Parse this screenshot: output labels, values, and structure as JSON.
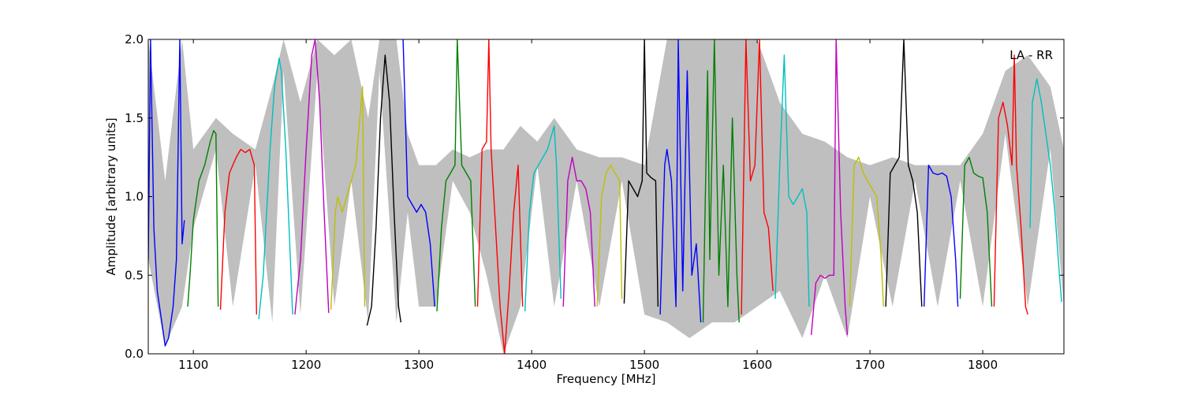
{
  "chart_data": {
    "type": "line",
    "title": "",
    "annotation": "LA - RR",
    "xlabel": "Frequency [MHz]",
    "ylabel": "Amplitude [arbitrary units]",
    "xlim": [
      1060,
      1872
    ],
    "ylim": [
      0.0,
      2.0
    ],
    "xticks": [
      1100,
      1200,
      1300,
      1400,
      1500,
      1600,
      1700,
      1800
    ],
    "yticks": [
      0.0,
      0.5,
      1.0,
      1.5,
      2.0
    ],
    "xtick_labels": [
      "1100",
      "1200",
      "1300",
      "1400",
      "1500",
      "1600",
      "1700",
      "1800"
    ],
    "ytick_labels": [
      "0.0",
      "0.5",
      "1.0",
      "1.5",
      "2.0"
    ],
    "grid": false,
    "background_envelope": {
      "color": "#bfbfbf",
      "x": [
        1060,
        1075,
        1090,
        1100,
        1120,
        1135,
        1155,
        1170,
        1180,
        1195,
        1210,
        1225,
        1240,
        1255,
        1265,
        1280,
        1290,
        1300,
        1315,
        1330,
        1345,
        1360,
        1375,
        1390,
        1405,
        1420,
        1440,
        1460,
        1480,
        1500,
        1520,
        1540,
        1560,
        1580,
        1600,
        1620,
        1640,
        1660,
        1680,
        1700,
        1720,
        1740,
        1760,
        1780,
        1800,
        1820,
        1840,
        1860,
        1872
      ],
      "upper": [
        2.0,
        1.1,
        2.0,
        1.3,
        1.5,
        1.4,
        1.3,
        1.7,
        2.0,
        1.6,
        2.0,
        1.9,
        2.0,
        1.5,
        2.0,
        2.0,
        1.4,
        1.2,
        1.2,
        1.3,
        1.25,
        1.3,
        1.3,
        1.45,
        1.35,
        1.5,
        1.3,
        1.25,
        1.25,
        1.2,
        2.0,
        2.0,
        2.0,
        2.0,
        2.0,
        1.6,
        1.4,
        1.35,
        1.25,
        1.2,
        1.25,
        1.2,
        1.2,
        1.2,
        1.4,
        1.8,
        1.9,
        1.7,
        1.3
      ],
      "lower": [
        0.6,
        0.05,
        0.3,
        0.8,
        1.3,
        0.3,
        1.2,
        0.2,
        1.8,
        0.25,
        1.8,
        0.3,
        1.1,
        0.2,
        1.8,
        0.2,
        0.9,
        0.3,
        0.3,
        1.1,
        0.9,
        0.5,
        0.0,
        0.3,
        1.2,
        0.3,
        1.1,
        0.3,
        1.1,
        0.25,
        0.2,
        0.1,
        0.2,
        0.2,
        0.3,
        0.4,
        0.1,
        0.5,
        0.1,
        1.0,
        0.3,
        1.1,
        0.3,
        1.1,
        0.3,
        1.4,
        0.3,
        1.3,
        0.3
      ]
    },
    "series": [
      {
        "color": "#0000ff",
        "x": [
          1060,
          1062,
          1065,
          1068,
          1072,
          1075,
          1078,
          1082,
          1085,
          1088,
          1090,
          1092
        ],
        "y": [
          0.6,
          2.0,
          0.8,
          0.4,
          0.2,
          0.05,
          0.1,
          0.3,
          0.6,
          2.0,
          0.7,
          0.85
        ]
      },
      {
        "color": "#008000",
        "x": [
          1095,
          1097,
          1100,
          1105,
          1110,
          1115,
          1118,
          1120,
          1122
        ],
        "y": [
          0.3,
          0.5,
          0.85,
          1.1,
          1.2,
          1.35,
          1.42,
          1.4,
          0.3
        ]
      },
      {
        "color": "#ff0000",
        "x": [
          1124,
          1128,
          1132,
          1138,
          1142,
          1146,
          1150,
          1154,
          1156
        ],
        "y": [
          0.28,
          0.9,
          1.15,
          1.25,
          1.3,
          1.28,
          1.3,
          1.2,
          0.25
        ]
      },
      {
        "color": "#00bfbf",
        "x": [
          1158,
          1162,
          1168,
          1172,
          1176,
          1178,
          1182,
          1186,
          1188
        ],
        "y": [
          0.22,
          0.5,
          1.3,
          1.7,
          1.88,
          1.8,
          1.3,
          0.6,
          0.25
        ]
      },
      {
        "color": "#bf00bf",
        "x": [
          1190,
          1195,
          1200,
          1205,
          1208,
          1212,
          1216,
          1220
        ],
        "y": [
          0.25,
          0.6,
          1.3,
          1.9,
          2.0,
          1.6,
          0.9,
          0.26
        ]
      },
      {
        "color": "#bfbf00",
        "x": [
          1222,
          1226,
          1228,
          1232,
          1238,
          1244,
          1250,
          1252
        ],
        "y": [
          0.28,
          0.9,
          1.0,
          0.9,
          1.05,
          1.2,
          1.7,
          0.3
        ]
      },
      {
        "color": "#000000",
        "x": [
          1254,
          1258,
          1262,
          1266,
          1270,
          1274,
          1278,
          1282,
          1284
        ],
        "y": [
          0.18,
          0.3,
          0.8,
          1.5,
          1.9,
          1.6,
          0.9,
          0.3,
          0.2
        ]
      },
      {
        "color": "#0000ff",
        "x": [
          1286,
          1288,
          1290,
          1294,
          1298,
          1302,
          1306,
          1310,
          1314
        ],
        "y": [
          2.0,
          1.5,
          1.0,
          0.95,
          0.9,
          0.95,
          0.9,
          0.7,
          0.3
        ]
      },
      {
        "color": "#008000",
        "x": [
          1316,
          1320,
          1324,
          1328,
          1332,
          1334,
          1338,
          1342,
          1346,
          1350
        ],
        "y": [
          0.27,
          0.8,
          1.1,
          1.15,
          1.2,
          2.0,
          1.2,
          1.15,
          1.1,
          0.3
        ]
      },
      {
        "color": "#ff0000",
        "x": [
          1352,
          1356,
          1360,
          1362,
          1364,
          1368,
          1372,
          1376,
          1380,
          1384,
          1388,
          1392
        ],
        "y": [
          0.3,
          1.3,
          1.35,
          2.0,
          1.3,
          0.8,
          0.3,
          0.0,
          0.4,
          0.9,
          1.2,
          0.3
        ]
      },
      {
        "color": "#00bfbf",
        "x": [
          1394,
          1398,
          1402,
          1406,
          1410,
          1414,
          1418,
          1420,
          1422,
          1426
        ],
        "y": [
          0.27,
          0.9,
          1.15,
          1.2,
          1.25,
          1.3,
          1.4,
          1.45,
          1.2,
          0.35
        ]
      },
      {
        "color": "#bf00bf",
        "x": [
          1428,
          1432,
          1436,
          1440,
          1444,
          1448,
          1452,
          1456
        ],
        "y": [
          0.3,
          1.1,
          1.25,
          1.1,
          1.1,
          1.05,
          0.9,
          0.3
        ]
      },
      {
        "color": "#bfbf00",
        "x": [
          1458,
          1462,
          1466,
          1470,
          1474,
          1478,
          1480
        ],
        "y": [
          0.3,
          1.0,
          1.15,
          1.2,
          1.15,
          1.1,
          0.35
        ]
      },
      {
        "color": "#000000",
        "x": [
          1482,
          1486,
          1490,
          1494,
          1498,
          1500,
          1502,
          1506,
          1510,
          1512
        ],
        "y": [
          0.32,
          1.1,
          1.05,
          1.0,
          1.1,
          2.0,
          1.15,
          1.12,
          1.1,
          0.3
        ]
      },
      {
        "color": "#0000ff",
        "x": [
          1514,
          1518,
          1520,
          1524,
          1528,
          1530,
          1534,
          1538,
          1542,
          1546,
          1550
        ],
        "y": [
          0.25,
          1.2,
          1.3,
          1.1,
          0.3,
          2.0,
          0.4,
          1.8,
          0.5,
          0.7,
          0.2
        ]
      },
      {
        "color": "#008000",
        "x": [
          1552,
          1556,
          1558,
          1562,
          1566,
          1570,
          1574,
          1578,
          1582,
          1584
        ],
        "y": [
          0.2,
          1.8,
          0.6,
          2.0,
          0.5,
          1.2,
          0.3,
          1.5,
          0.5,
          0.2
        ]
      },
      {
        "color": "#ff0000",
        "x": [
          1586,
          1590,
          1594,
          1598,
          1602,
          1606,
          1610,
          1614
        ],
        "y": [
          0.25,
          2.0,
          1.1,
          1.2,
          2.0,
          0.9,
          0.8,
          0.4
        ]
      },
      {
        "color": "#00bfbf",
        "x": [
          1616,
          1620,
          1624,
          1628,
          1632,
          1636,
          1640,
          1644,
          1646
        ],
        "y": [
          0.35,
          1.2,
          1.9,
          1.0,
          0.95,
          1.0,
          1.05,
          0.9,
          0.3
        ]
      },
      {
        "color": "#bf00bf",
        "x": [
          1648,
          1652,
          1656,
          1660,
          1664,
          1668,
          1670,
          1674,
          1678,
          1680
        ],
        "y": [
          0.12,
          0.45,
          0.5,
          0.48,
          0.5,
          0.5,
          2.0,
          0.9,
          0.3,
          0.12
        ]
      },
      {
        "color": "#bfbf00",
        "x": [
          1682,
          1686,
          1690,
          1694,
          1698,
          1702,
          1706,
          1710,
          1712
        ],
        "y": [
          0.3,
          1.2,
          1.25,
          1.15,
          1.1,
          1.05,
          1.0,
          0.6,
          0.3
        ]
      },
      {
        "color": "#000000",
        "x": [
          1714,
          1718,
          1722,
          1726,
          1730,
          1734,
          1738,
          1742,
          1746
        ],
        "y": [
          0.3,
          1.15,
          1.2,
          1.25,
          2.0,
          1.2,
          1.1,
          0.9,
          0.3
        ]
      },
      {
        "color": "#0000ff",
        "x": [
          1748,
          1752,
          1756,
          1760,
          1764,
          1768,
          1772,
          1776,
          1778
        ],
        "y": [
          0.3,
          1.2,
          1.15,
          1.14,
          1.15,
          1.13,
          1.0,
          0.6,
          0.3
        ]
      },
      {
        "color": "#008000",
        "x": [
          1780,
          1784,
          1788,
          1792,
          1796,
          1800,
          1804,
          1808
        ],
        "y": [
          0.35,
          1.2,
          1.25,
          1.15,
          1.13,
          1.12,
          0.9,
          0.3
        ]
      },
      {
        "color": "#ff0000",
        "x": [
          1810,
          1814,
          1818,
          1822,
          1826,
          1828,
          1830,
          1834,
          1838,
          1840
        ],
        "y": [
          0.3,
          1.5,
          1.6,
          1.45,
          1.2,
          1.9,
          1.2,
          0.8,
          0.3,
          0.25
        ]
      },
      {
        "color": "#00bfbf",
        "x": [
          1842,
          1844,
          1848,
          1852,
          1856,
          1860,
          1864,
          1868,
          1870
        ],
        "y": [
          0.8,
          1.6,
          1.75,
          1.6,
          1.4,
          1.2,
          0.9,
          0.5,
          0.33
        ]
      }
    ]
  }
}
